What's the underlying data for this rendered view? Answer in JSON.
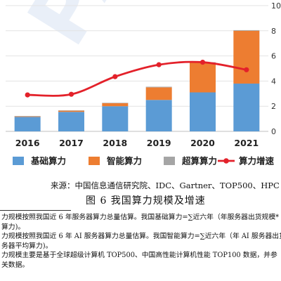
{
  "watermark": "PACT中",
  "chart_data": {
    "type": "bar",
    "stacked": true,
    "categories": [
      "2016",
      "2017",
      "2018",
      "2019",
      "2020",
      "2021"
    ],
    "ylim": [
      0,
      10
    ],
    "yticks": [
      "0",
      "2",
      "4",
      "6",
      "8",
      "10"
    ],
    "grid": true,
    "legend_position": "bottom",
    "series": [
      {
        "name": "基础算力",
        "kind": "bar",
        "color": "#5b9bd5",
        "values": [
          1.15,
          1.55,
          2.0,
          2.5,
          3.1,
          3.8
        ]
      },
      {
        "name": "智能算力",
        "kind": "bar",
        "color": "#ed7d31",
        "values": [
          0.05,
          0.1,
          0.25,
          1.0,
          2.35,
          4.2
        ]
      },
      {
        "name": "超算算力",
        "kind": "bar",
        "color": "#a5a5a5",
        "values": [
          0.02,
          0.02,
          0.02,
          0.05,
          0.05,
          0.05
        ]
      },
      {
        "name": "算力增速",
        "kind": "line",
        "color": "#e3212a",
        "values": [
          2.9,
          2.95,
          4.35,
          5.3,
          5.5,
          4.9
        ]
      }
    ]
  },
  "source": "来源：中国信息通信研究院、IDC、Gartner、TOP500、HPC",
  "caption": "图 6 我国算力规模及增速",
  "footnotes": [
    "力规模按照我国近 6 年服务器算力总量估算。我国基础算力=∑近六年（年服务器出货规模*",
    "算力)。",
    "力规模按照我国近 6 年 AI 服务器算力总量估算。我国智能算力=∑近六年（年 AI 服务器出货",
    "务器平均算力)。",
    "力规模主要是基于全球超级计算机 TOP500、中国高性能计算机性能 TOP100 数据，并参",
    "关数据。"
  ]
}
